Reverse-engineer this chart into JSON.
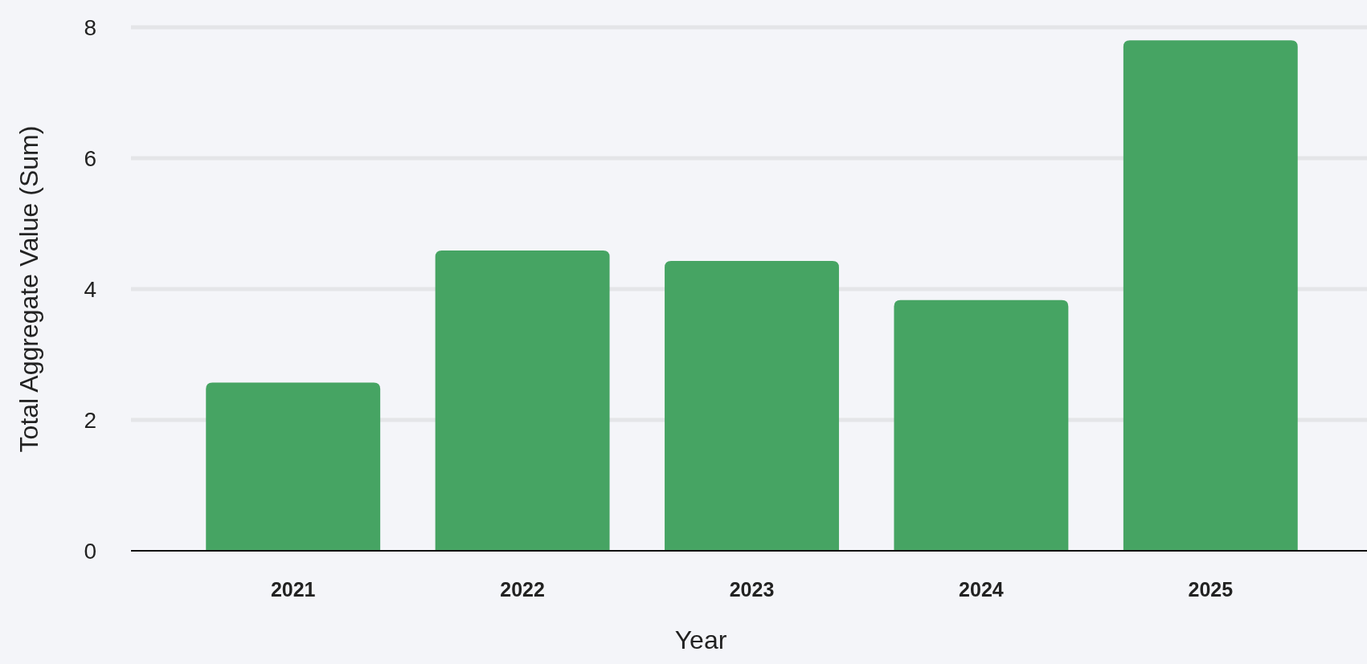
{
  "chart_data": {
    "type": "bar",
    "xlabel": "Year",
    "ylabel": "Total Aggregate Value (Sum)",
    "categories": [
      "2021",
      "2022",
      "2023",
      "2024",
      "2025"
    ],
    "values": [
      2.57,
      4.59,
      4.43,
      3.83,
      7.8
    ],
    "color": "#46a463",
    "ylim": [
      0,
      8
    ],
    "yticks": [
      0,
      2,
      4,
      6,
      8
    ],
    "grid": "y"
  }
}
